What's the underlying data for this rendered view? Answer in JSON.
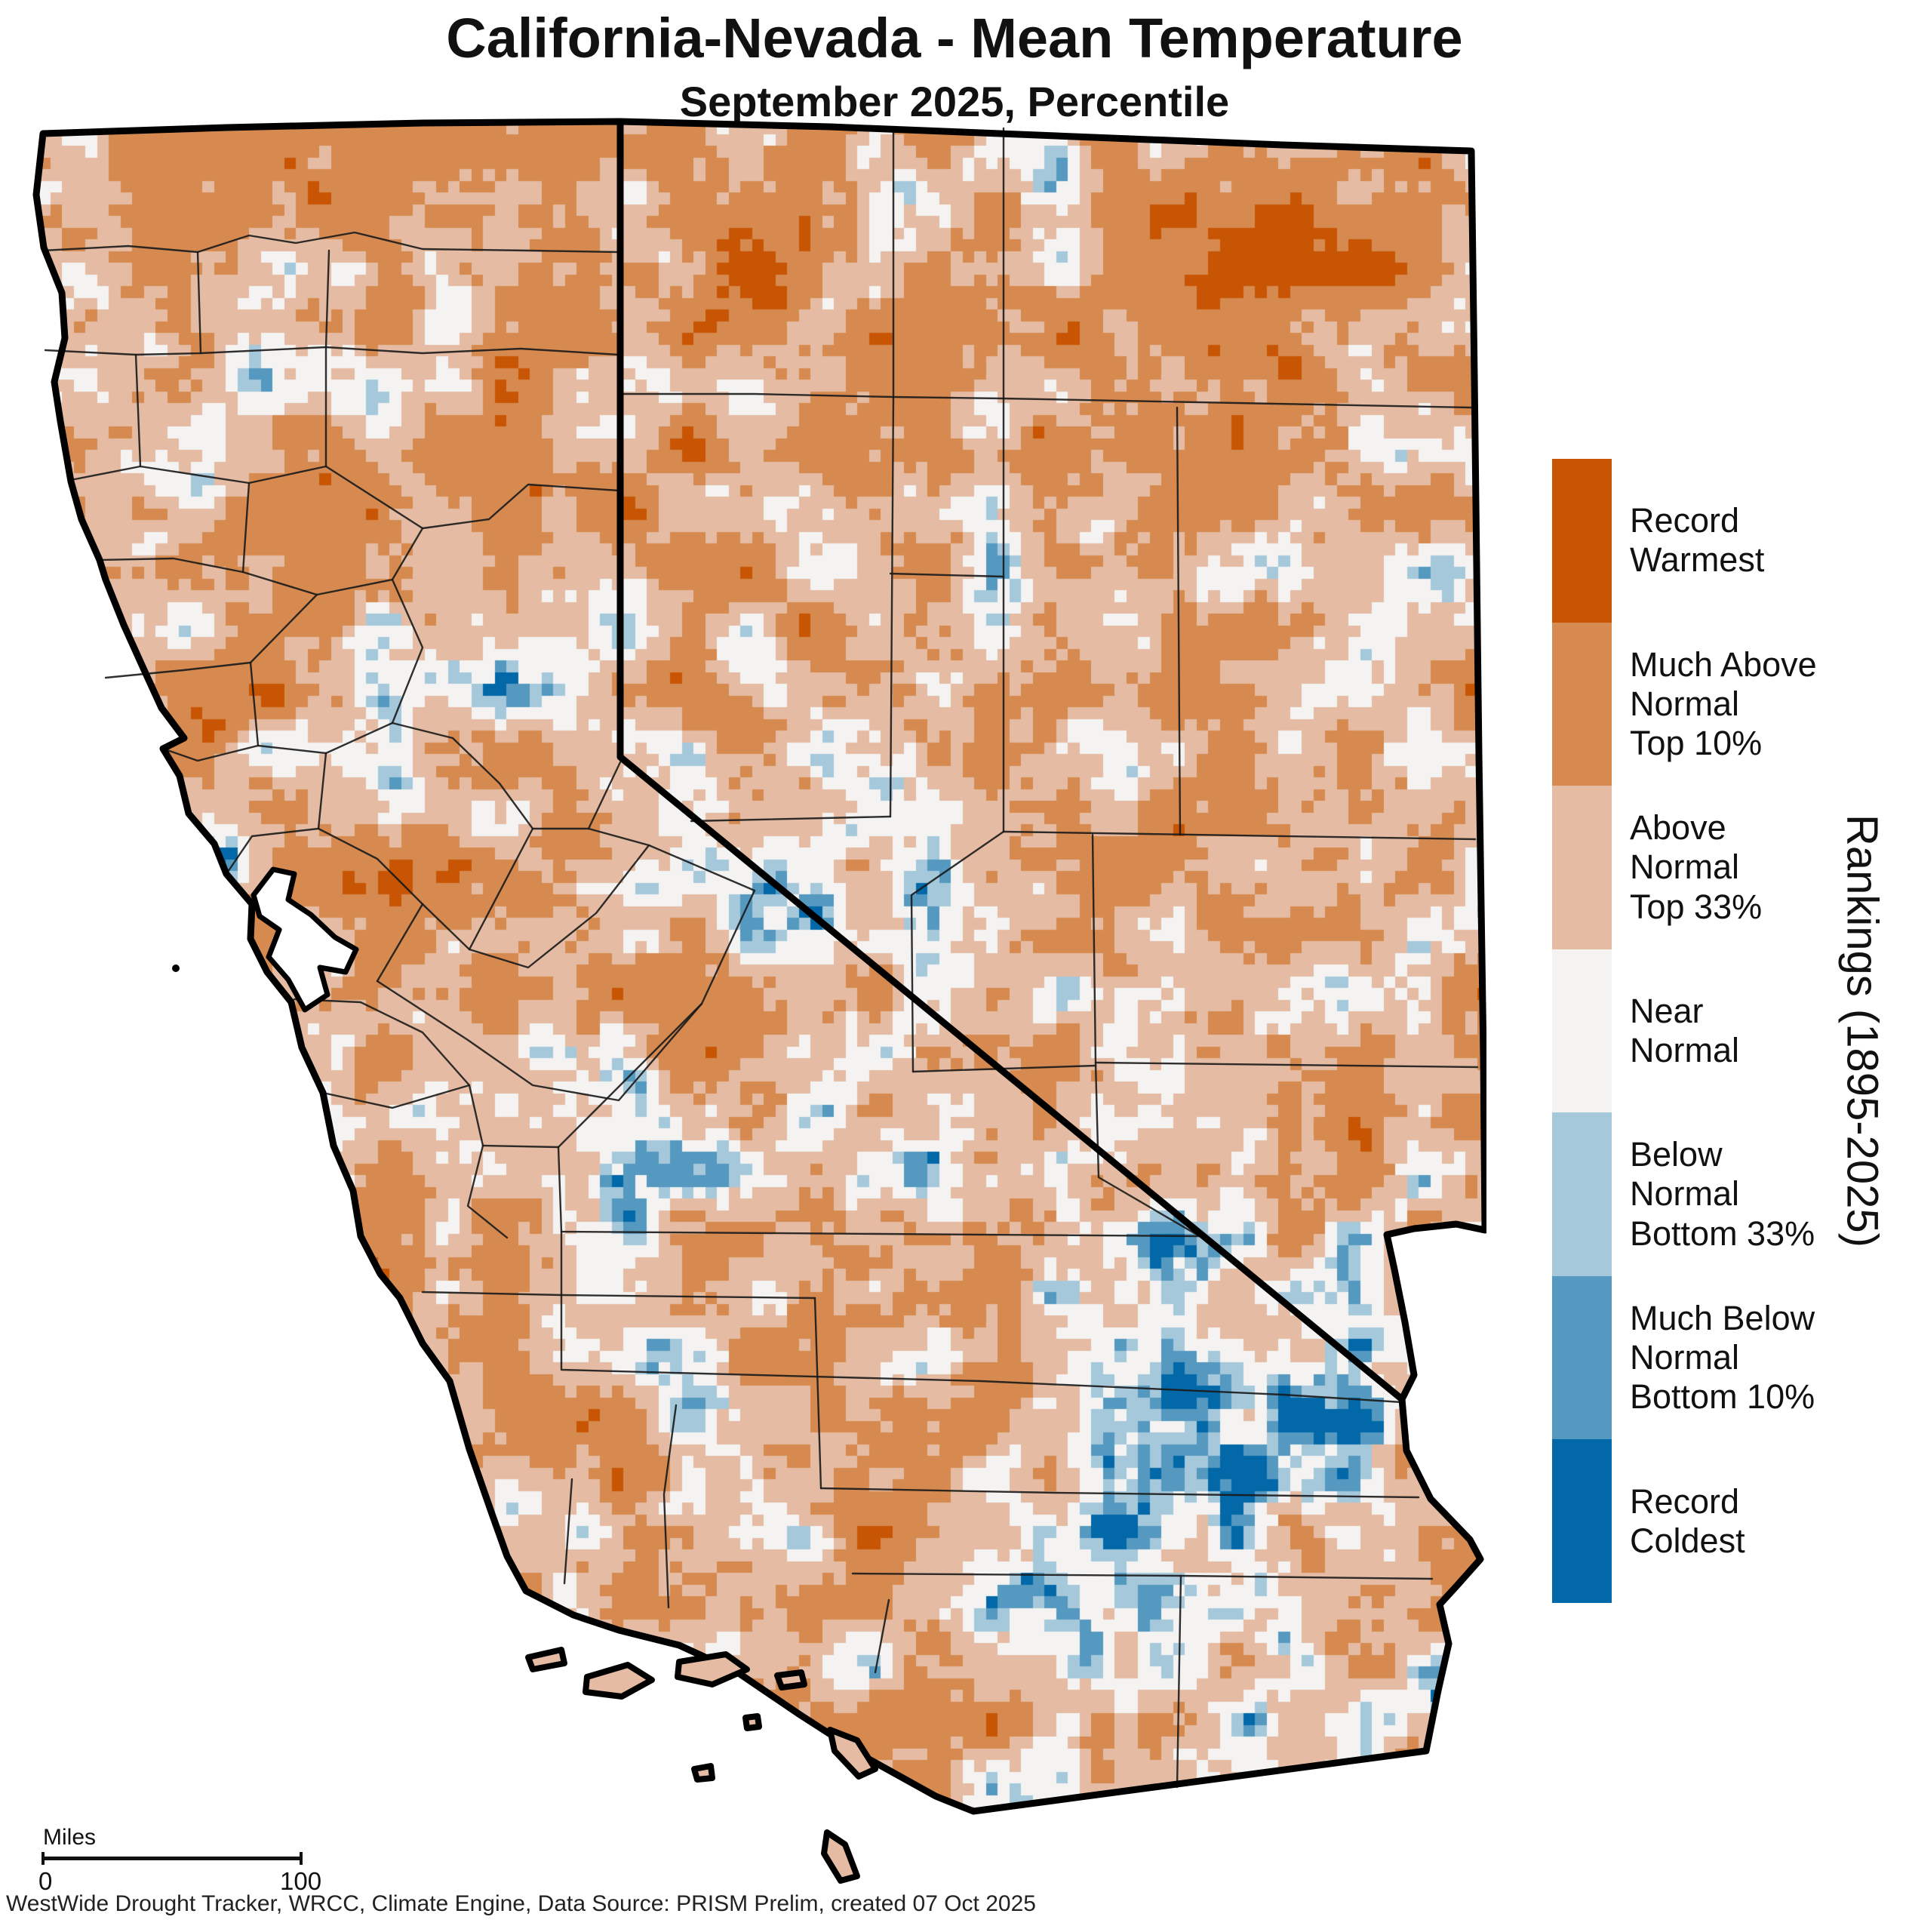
{
  "title": "California-Nevada - Mean Temperature",
  "subtitle": "September 2025, Percentile",
  "legend": {
    "axis_label": "Rankings (1895-2025)",
    "categories": [
      {
        "label": "Record\nWarmest",
        "color": "#C85504"
      },
      {
        "label": "Much Above\nNormal\nTop 10%",
        "color": "#D68A50"
      },
      {
        "label": "Above\nNormal\nTop 33%",
        "color": "#E5BCA3"
      },
      {
        "label": "Near\nNormal",
        "color": "#F4F3F2"
      },
      {
        "label": "Below\nNormal\nBottom 33%",
        "color": "#A5C8DB"
      },
      {
        "label": "Much Below\nNormal\nBottom 10%",
        "color": "#5599C0"
      },
      {
        "label": "Record\nColdest",
        "color": "#0268A8"
      }
    ]
  },
  "scale_bar": {
    "label": "Miles",
    "start": "0",
    "end": "100"
  },
  "caption": "WestWide Drought Tracker, WRCC, Climate Engine, Data Source: PRISM Prelim, created 07 Oct 2025",
  "map_data": {
    "type": "choropleth-raster",
    "region": "California-Nevada",
    "variable": "Mean Temperature percentile ranking",
    "period": "September 2025",
    "ranking_years": "1895-2025",
    "dominant_categories": [
      "Much Above Normal Top 10%",
      "Above Normal Top 33%"
    ],
    "notable_features": [
      "Record Warmest patch in northeastern Nevada",
      "Near Normal and Below Normal patches in southern Nevada and southeastern California",
      "Small Below/Much Below Normal blob near the lower Colorado River in far southeastern California"
    ]
  }
}
